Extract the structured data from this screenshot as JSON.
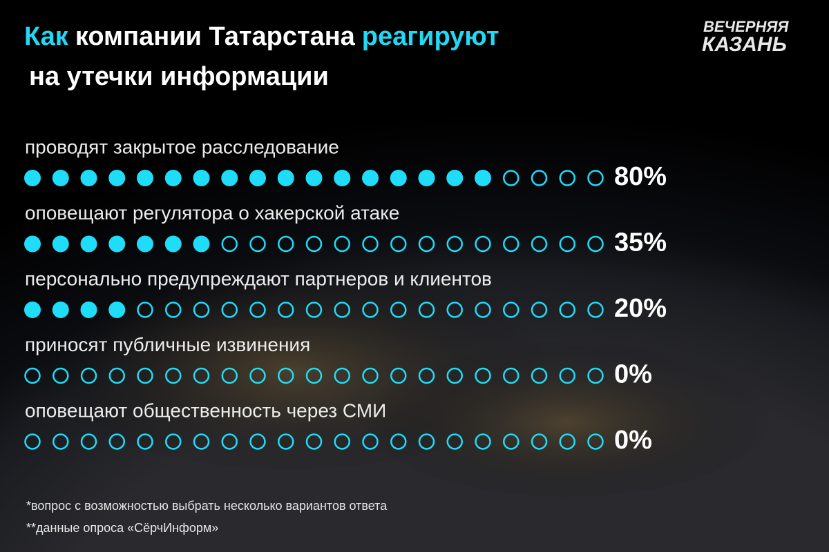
{
  "chart_data": {
    "type": "dot",
    "title": [
      {
        "text": "Как",
        "color": "#22d8f2"
      },
      {
        "text": "компании Татарстана",
        "color": "#ffffff"
      },
      {
        "text": "реагируют",
        "color": "#22d8f2"
      },
      {
        "text": "на утечки информации",
        "color": "#ffffff"
      }
    ],
    "logo": [
      "ВЕЧЕРНЯЯ",
      "КАЗАНЬ"
    ],
    "categories": [
      "проводят закрытое расследование",
      "оповещают регулятора о хакерской атаке",
      "персонально предупреждают партнеров и клиентов",
      "приносят публичные извинения",
      "оповещают общественность через СМИ"
    ],
    "values": [
      80,
      35,
      20,
      0,
      0
    ],
    "value_labels": [
      "80%",
      "35%",
      "20%",
      "0%",
      "0%"
    ],
    "color": "#1fdcf8",
    "footnotes": [
      "*вопрос с возможностью выбрать несколько вариантов ответа",
      "**данные опроса «СёрчИнформ»"
    ]
  }
}
